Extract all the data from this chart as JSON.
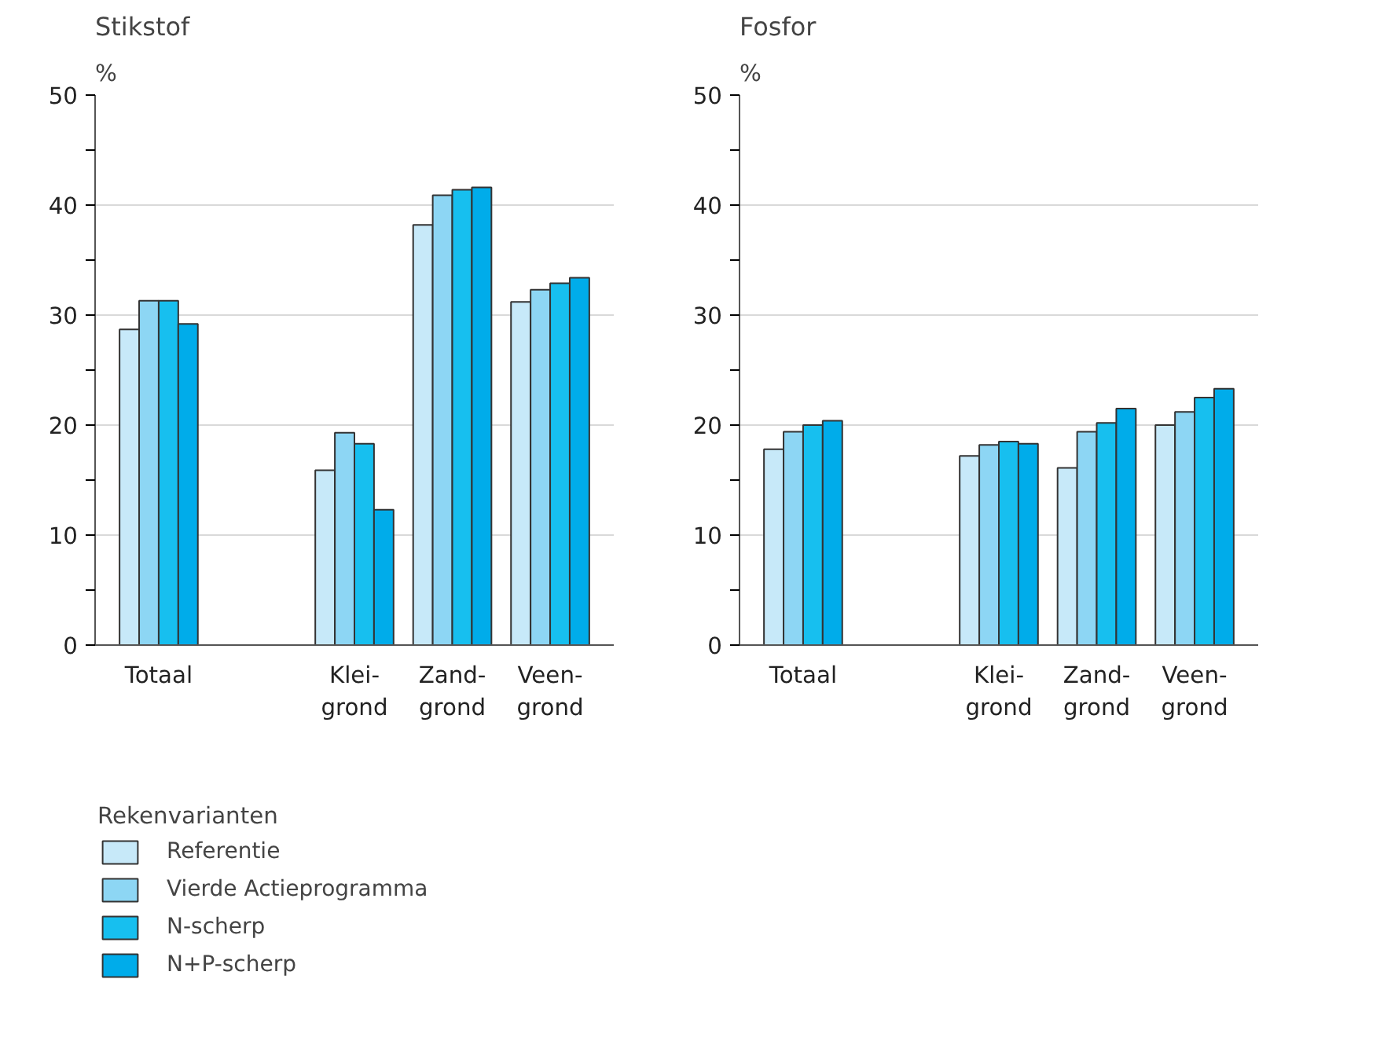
{
  "chart_data": [
    {
      "type": "bar",
      "title": "Stikstof",
      "ylabel": "%",
      "legend_title": "Rekenvarianten",
      "legend": "bottom",
      "grid": "y",
      "categories": [
        "Totaal",
        null,
        "Klei-\ngrond",
        "Zand-\ngrond",
        "Veen-\ngrond"
      ],
      "ylim": [
        0,
        50
      ],
      "yticks": [
        0,
        {
          "value": 5,
          "label": null
        },
        10,
        {
          "value": 15,
          "label": null
        },
        20,
        {
          "value": 25,
          "label": null
        },
        30,
        {
          "value": 35,
          "label": null
        },
        40,
        {
          "value": 45,
          "label": null
        },
        50
      ],
      "series": [
        {
          "name": "Referentie",
          "color": "#c7e9f9",
          "values": [
            28.7,
            null,
            15.9,
            38.2,
            31.2
          ]
        },
        {
          "name": "Vierde Actieprogramma",
          "color": "#8dd6f4",
          "values": [
            31.3,
            null,
            19.3,
            40.9,
            32.3
          ]
        },
        {
          "name": "N-scherp",
          "color": "#17bfef",
          "values": [
            31.3,
            null,
            18.3,
            41.4,
            32.9
          ]
        },
        {
          "name": "N+P-scherp",
          "color": "#00acea",
          "values": [
            29.2,
            null,
            12.3,
            41.6,
            33.4
          ]
        }
      ]
    },
    {
      "type": "bar",
      "title": "Fosfor",
      "ylabel": "%",
      "grid": "y",
      "categories": [
        "Totaal",
        null,
        "Klei-\ngrond",
        "Zand-\ngrond",
        "Veen-\ngrond"
      ],
      "ylim": [
        0,
        50
      ],
      "yticks": [
        0,
        {
          "value": 5,
          "label": null
        },
        10,
        {
          "value": 15,
          "label": null
        },
        20,
        {
          "value": 25,
          "label": null
        },
        30,
        {
          "value": 35,
          "label": null
        },
        40,
        {
          "value": 45,
          "label": null
        },
        50
      ],
      "series": [
        {
          "color": "#c7e9f9",
          "values": [
            17.8,
            null,
            17.2,
            16.1,
            20.0
          ]
        },
        {
          "color": "#8dd6f4",
          "values": [
            19.4,
            null,
            18.2,
            19.4,
            21.2
          ]
        },
        {
          "color": "#17bfef",
          "values": [
            20.0,
            null,
            18.5,
            20.2,
            22.5
          ]
        },
        {
          "color": "#00acea",
          "values": [
            20.4,
            null,
            18.3,
            21.5,
            23.3
          ]
        }
      ]
    }
  ]
}
